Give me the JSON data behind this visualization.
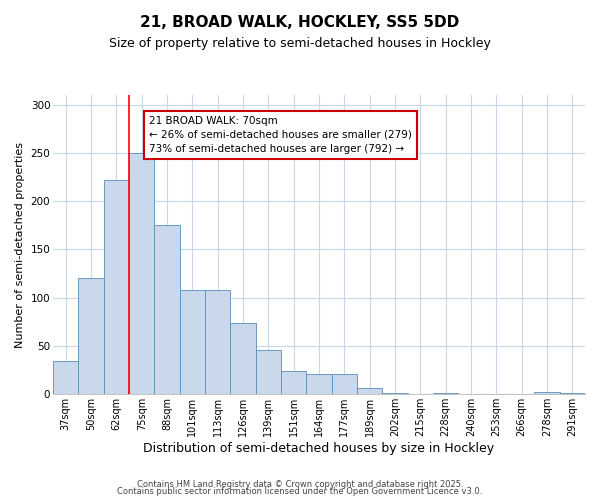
{
  "title": "21, BROAD WALK, HOCKLEY, SS5 5DD",
  "subtitle": "Size of property relative to semi-detached houses in Hockley",
  "xlabel": "Distribution of semi-detached houses by size in Hockley",
  "ylabel": "Number of semi-detached properties",
  "categories": [
    "37sqm",
    "50sqm",
    "62sqm",
    "75sqm",
    "88sqm",
    "101sqm",
    "113sqm",
    "126sqm",
    "139sqm",
    "151sqm",
    "164sqm",
    "177sqm",
    "189sqm",
    "202sqm",
    "215sqm",
    "228sqm",
    "240sqm",
    "253sqm",
    "266sqm",
    "278sqm",
    "291sqm"
  ],
  "values": [
    34,
    120,
    222,
    250,
    175,
    108,
    108,
    74,
    46,
    24,
    21,
    21,
    6,
    1,
    0,
    1,
    0,
    0,
    0,
    2,
    1
  ],
  "bar_color": "#c9d9eb",
  "bar_edge_color": "#5b8db8",
  "vline_label": "21 BROAD WALK: 70sqm",
  "annotation_smaller": "← 26% of semi-detached houses are smaller (279)",
  "annotation_larger": "73% of semi-detached houses are larger (792) →",
  "annotation_box_color": "#ffffff",
  "annotation_box_edge": "#cc0000",
  "footnote1": "Contains HM Land Registry data © Crown copyright and database right 2025.",
  "footnote2": "Contains public sector information licensed under the Open Government Licence v3.0.",
  "ylim": [
    0,
    310
  ],
  "title_fontsize": 11,
  "subtitle_fontsize": 9,
  "ylabel_fontsize": 8,
  "xlabel_fontsize": 9,
  "tick_fontsize": 7,
  "background_color": "#ffffff",
  "grid_color": "#c8d8e8",
  "vline_xindex": 2.5
}
